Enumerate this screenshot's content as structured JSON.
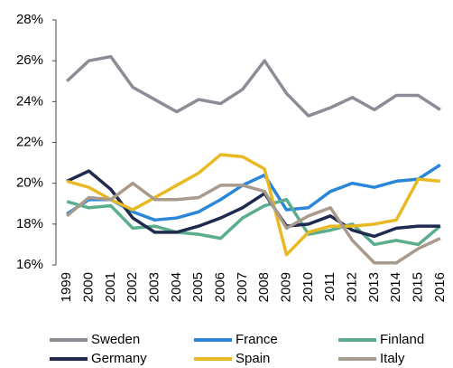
{
  "chart_data": {
    "type": "line",
    "categories": [
      "1999",
      "2000",
      "2001",
      "2002",
      "2003",
      "2004",
      "2005",
      "2006",
      "2007",
      "2008",
      "2009",
      "2010",
      "2011",
      "2012",
      "2013",
      "2014",
      "2015",
      "2016"
    ],
    "series": [
      {
        "name": "Sweden",
        "color": "#8c8c96",
        "values": [
          25.0,
          26.0,
          26.2,
          24.7,
          24.1,
          23.5,
          24.1,
          23.9,
          24.6,
          26.0,
          24.4,
          23.3,
          23.7,
          24.2,
          23.6,
          24.3,
          24.3,
          23.6
        ]
      },
      {
        "name": "France",
        "color": "#2a86d8",
        "values": [
          18.5,
          19.2,
          19.2,
          18.6,
          18.2,
          18.3,
          18.6,
          19.2,
          19.9,
          20.4,
          18.7,
          18.8,
          19.6,
          20.0,
          19.8,
          20.1,
          20.2,
          20.9
        ]
      },
      {
        "name": "Finland",
        "color": "#5bae8c",
        "values": [
          19.1,
          18.8,
          18.9,
          17.8,
          17.9,
          17.6,
          17.5,
          17.3,
          18.3,
          18.9,
          19.2,
          17.5,
          17.7,
          18.0,
          17.0,
          17.2,
          17.0,
          17.9
        ]
      },
      {
        "name": "Germany",
        "color": "#1f2a4e",
        "values": [
          20.1,
          20.6,
          19.7,
          18.3,
          17.6,
          17.6,
          17.9,
          18.3,
          18.8,
          19.5,
          17.9,
          18.0,
          18.4,
          17.7,
          17.4,
          17.8,
          17.9,
          17.9
        ]
      },
      {
        "name": "Spain",
        "color": "#e8b923",
        "values": [
          20.1,
          19.8,
          19.2,
          18.7,
          19.3,
          19.9,
          20.5,
          21.4,
          21.3,
          20.7,
          16.5,
          17.6,
          17.9,
          17.9,
          18.0,
          18.2,
          20.2,
          20.1
        ]
      },
      {
        "name": "Italy",
        "color": "#a89a8c",
        "values": [
          18.4,
          19.3,
          19.2,
          20.0,
          19.2,
          19.2,
          19.3,
          19.9,
          19.9,
          19.6,
          17.8,
          18.4,
          18.8,
          17.2,
          16.1,
          16.1,
          16.8,
          17.3
        ]
      }
    ],
    "ylim": [
      16,
      28
    ],
    "yticks": [
      {
        "value": 16,
        "label": "16%"
      },
      {
        "value": 18,
        "label": "18%"
      },
      {
        "value": 20,
        "label": "20%"
      },
      {
        "value": 22,
        "label": "22%"
      },
      {
        "value": 24,
        "label": "24%"
      },
      {
        "value": 26,
        "label": "26%"
      },
      {
        "value": 28,
        "label": "28%"
      }
    ],
    "legend": "bottom",
    "grid": false
  }
}
